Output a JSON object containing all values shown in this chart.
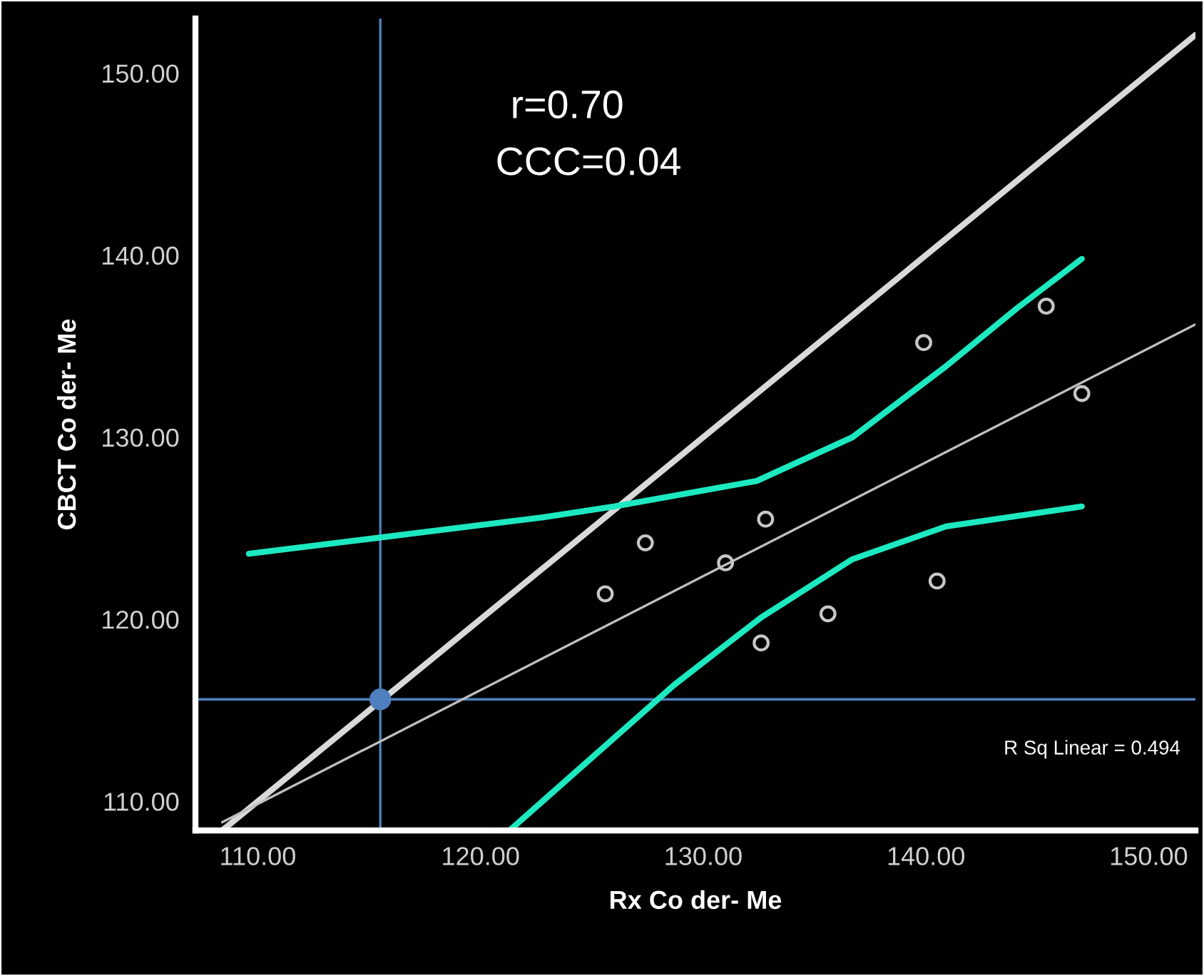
{
  "chart_data": {
    "type": "scatter",
    "xlabel": "Rx Co der- Me",
    "ylabel": "CBCT Co der- Me",
    "xlim": [
      107.2,
      152.1
    ],
    "ylim": [
      108.4,
      153
    ],
    "xticks": [
      {
        "value": 110,
        "label": "110.00"
      },
      {
        "value": 120,
        "label": "120.00"
      },
      {
        "value": 130,
        "label": "130.00"
      },
      {
        "value": 140,
        "label": "140.00"
      },
      {
        "value": 150,
        "label": "150.00"
      }
    ],
    "yticks": [
      {
        "value": 110,
        "label": "110.00"
      },
      {
        "value": 120,
        "label": "120.00"
      },
      {
        "value": 130,
        "label": "130.00"
      },
      {
        "value": 140,
        "label": "140.00"
      },
      {
        "value": 150,
        "label": "150.00"
      }
    ],
    "grid": false,
    "series": [
      {
        "type": "line",
        "color": "#d9d9d9",
        "x": [
          108.4,
          152.1
        ],
        "values": [
          108.4,
          152.1
        ],
        "marker": "none"
      },
      {
        "type": "line",
        "color": "#bfbfbf",
        "x": [
          108.4,
          152.1
        ],
        "values": [
          108.85,
          136.2
        ],
        "marker": "none"
      },
      {
        "type": "line",
        "color": "#1de9c0",
        "x": [
          109.6,
          122.8,
          126.0,
          132.4,
          136.7,
          140.9,
          144.1,
          147.0
        ],
        "values": [
          123.6,
          125.6,
          126.2,
          127.6,
          130.0,
          133.9,
          137.1,
          139.8
        ],
        "marker": "none"
      },
      {
        "type": "line",
        "color": "#1de9c0",
        "x": [
          121.3,
          128.7,
          132.6,
          136.7,
          140.9,
          147.0
        ],
        "values": [
          108.4,
          116.4,
          120.1,
          123.3,
          125.1,
          126.2
        ],
        "marker": "none"
      },
      {
        "color": "#c8c8c8",
        "x": [
          125.6,
          127.4,
          131.0,
          132.8,
          132.6,
          135.6,
          140.5,
          139.9,
          145.4,
          147.0
        ],
        "values": [
          121.4,
          124.2,
          123.1,
          125.5,
          118.7,
          120.3,
          122.1,
          135.2,
          137.2,
          132.4
        ],
        "marker": "circle"
      },
      {
        "color": "#4f7fbf",
        "x": [
          115.5
        ],
        "values": [
          115.6
        ],
        "marker": "circle"
      }
    ],
    "ref_lines": [
      {
        "axis": "x",
        "value": 115.5,
        "color": "#4f81bd"
      },
      {
        "axis": "y",
        "value": 115.6,
        "color": "#4f81bd"
      }
    ],
    "annotations": [
      "r=0.70",
      "CCC=0.04",
      "R Sq Linear = 0.494"
    ]
  }
}
